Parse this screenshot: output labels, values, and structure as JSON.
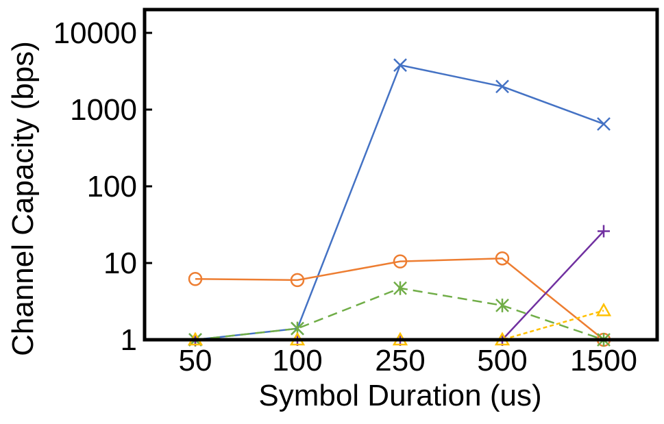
{
  "chart_data": {
    "type": "line",
    "title": "",
    "xlabel": "Symbol Duration (us)",
    "ylabel": "Channel Capacity (bps)",
    "yscale": "log",
    "ylim": [
      1,
      10000
    ],
    "yticks": [
      1,
      10,
      100,
      1000,
      10000
    ],
    "ytick_labels": [
      "1",
      "10",
      "100",
      "1000",
      "10000"
    ],
    "categories": [
      "50",
      "100",
      "250",
      "500",
      "1500"
    ],
    "grid": false,
    "legend": "none",
    "series": [
      {
        "color": "#4472C4",
        "dash": "solid",
        "marker": "x",
        "values": [
          1,
          1.4,
          3800,
          2000,
          650
        ]
      },
      {
        "color": "#ED7D31",
        "dash": "solid",
        "marker": "circle",
        "values": [
          6.2,
          6.0,
          10.5,
          11.5,
          1
        ]
      },
      {
        "color": "#70AD47",
        "dash": "dashed",
        "marker": "asterisk",
        "values": [
          1,
          1.4,
          4.7,
          2.8,
          1
        ]
      },
      {
        "color": "#7030A0",
        "dash": "solid",
        "marker": "plus",
        "values": [
          1,
          1,
          1,
          1,
          26
        ]
      },
      {
        "color": "#FFC000",
        "dash": "dotted",
        "marker": "triangle",
        "values": [
          1,
          1,
          1,
          1,
          2.4
        ]
      }
    ]
  }
}
